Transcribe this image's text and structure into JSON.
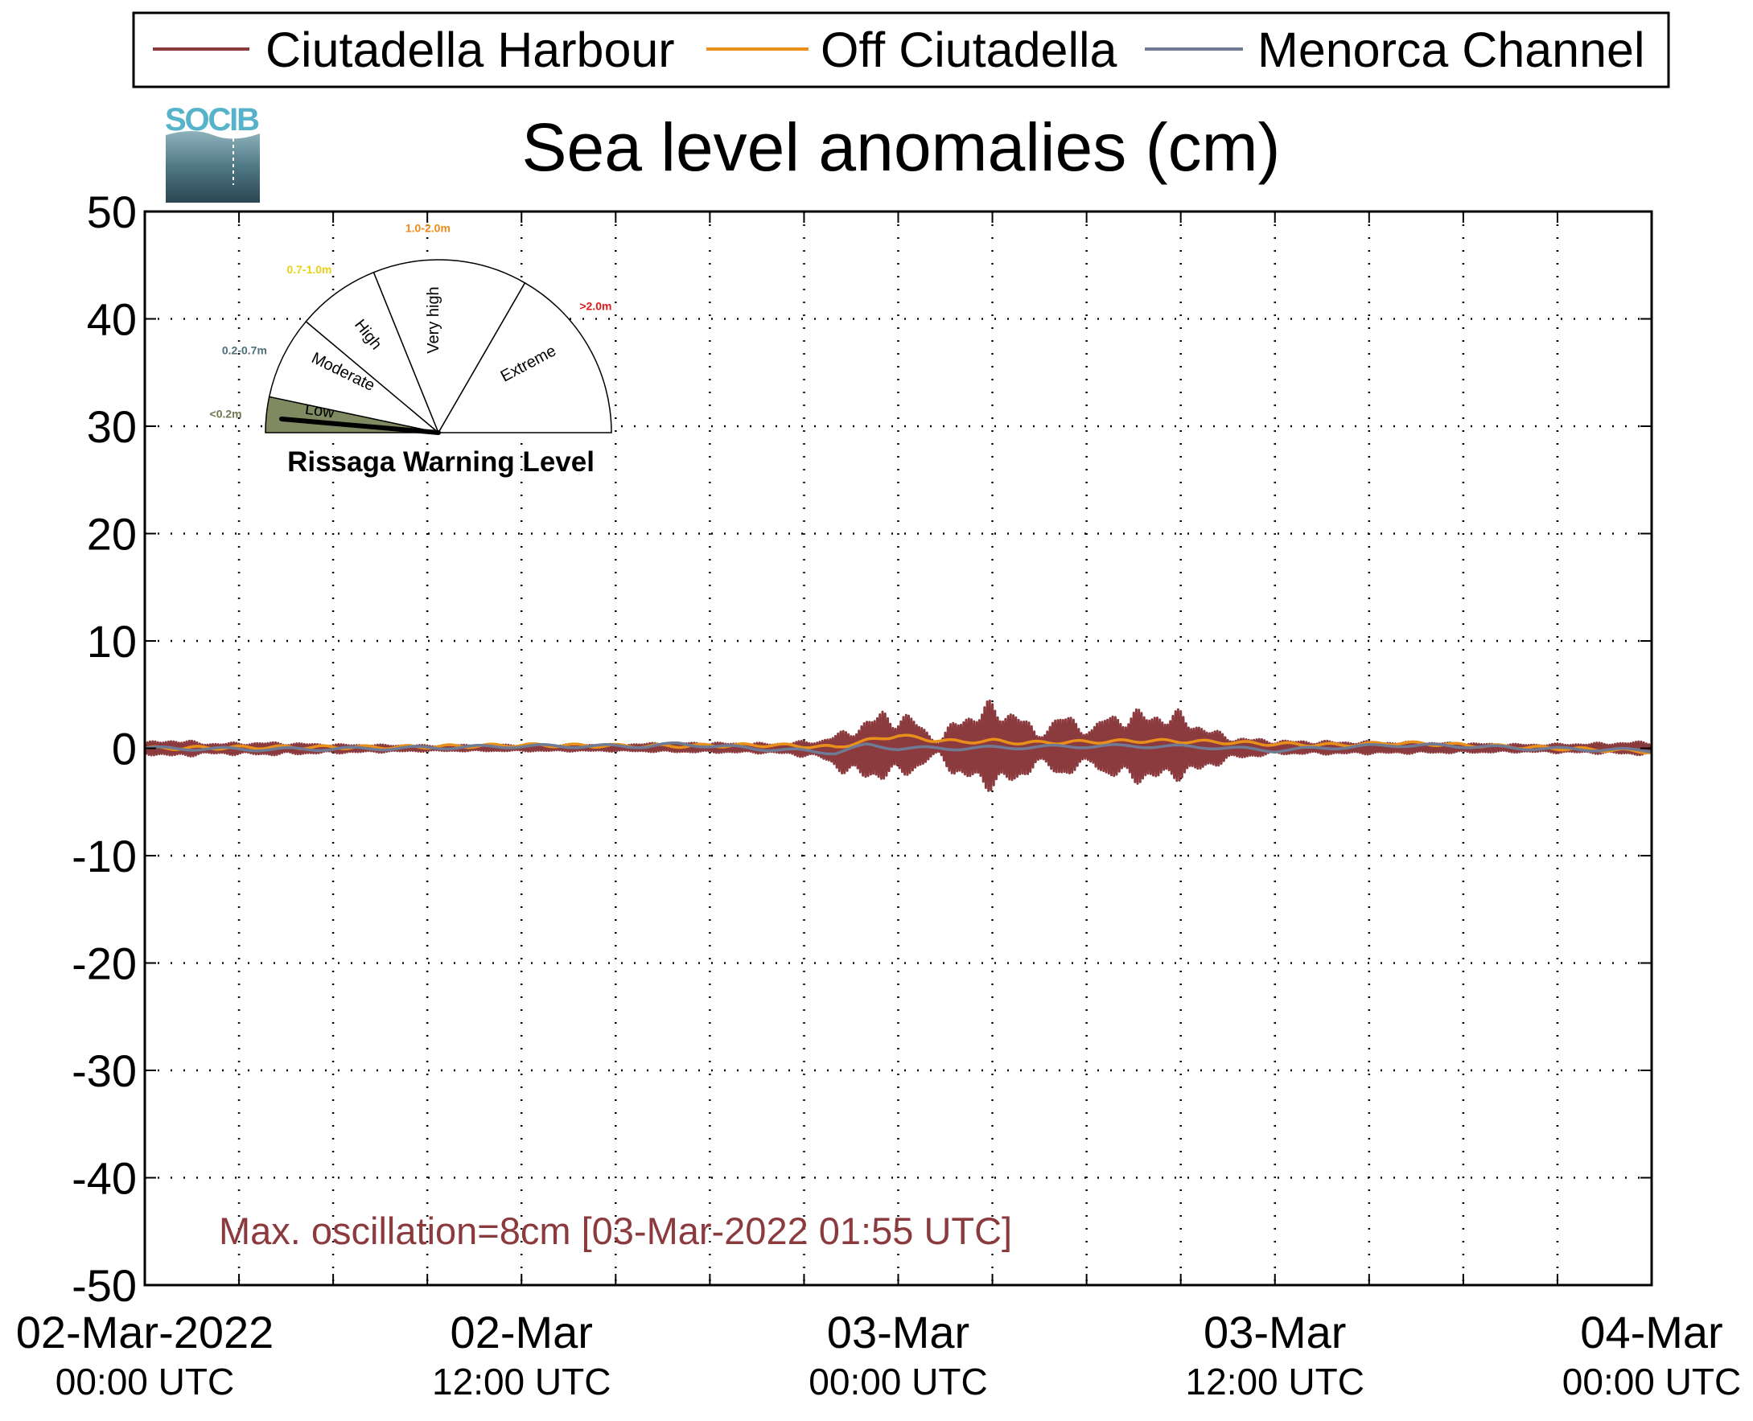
{
  "legend": {
    "items": [
      {
        "label": "Ciutadella Harbour",
        "color": "#8b3a3e"
      },
      {
        "label": "Off Ciutadella",
        "color": "#e8901a"
      },
      {
        "label": "Menorca Channel",
        "color": "#6f7b94"
      }
    ]
  },
  "logo": {
    "text": "SOCIB",
    "color": "#56b3c9"
  },
  "gauge": {
    "title": "Rissaga Warning Level",
    "segments": [
      {
        "label": "Low",
        "range": "<0.2m",
        "range_color": "#6f7a4f",
        "fill": "#808a60"
      },
      {
        "label": "Moderate",
        "range": "0.2-0.7m",
        "range_color": "#4f6f7a",
        "fill": "#ffffff"
      },
      {
        "label": "High",
        "range": "0.7-1.0m",
        "range_color": "#e6d21a",
        "fill": "#ffffff"
      },
      {
        "label": "Very high",
        "range": "1.0-2.0m",
        "range_color": "#f08a17",
        "fill": "#ffffff"
      },
      {
        "label": "Extreme",
        "range": ">2.0m",
        "range_color": "#e01a1a",
        "fill": "#ffffff"
      }
    ],
    "current_level": "Low"
  },
  "annotation": {
    "text": "Max. oscillation=8cm [03-Mar-2022 01:55 UTC]",
    "color": "#8b3a3e"
  },
  "chart_data": {
    "type": "line",
    "title": "Sea level anomalies (cm)",
    "xlabel": "",
    "ylabel": "",
    "ylim": [
      -50,
      50
    ],
    "yticks": [
      50,
      40,
      30,
      20,
      10,
      0,
      -10,
      -20,
      -30,
      -40,
      -50
    ],
    "xlim_hours": [
      0,
      48
    ],
    "xticks": [
      {
        "hour": 0,
        "line1": "02-Mar-2022",
        "line2": "00:00 UTC"
      },
      {
        "hour": 12,
        "line1": "02-Mar",
        "line2": "12:00 UTC"
      },
      {
        "hour": 24,
        "line1": "03-Mar",
        "line2": "00:00 UTC"
      },
      {
        "hour": 36,
        "line1": "03-Mar",
        "line2": "12:00 UTC"
      },
      {
        "hour": 48,
        "line1": "04-Mar",
        "line2": "00:00 UTC"
      }
    ],
    "grid": true,
    "series": [
      {
        "name": "Ciutadella Harbour",
        "color": "#8b3a3e",
        "envelope": [
          {
            "x": 0,
            "lo": -0.6,
            "hi": 0.6
          },
          {
            "x": 1,
            "lo": -0.9,
            "hi": 0.9
          },
          {
            "x": 2,
            "lo": -0.6,
            "hi": 0.5
          },
          {
            "x": 4,
            "lo": -0.7,
            "hi": 0.6
          },
          {
            "x": 6,
            "lo": -0.5,
            "hi": 0.4
          },
          {
            "x": 9,
            "lo": -0.3,
            "hi": 0.3
          },
          {
            "x": 12,
            "lo": -0.3,
            "hi": 0.4
          },
          {
            "x": 15,
            "lo": -0.3,
            "hi": 0.4
          },
          {
            "x": 17,
            "lo": -0.4,
            "hi": 0.6
          },
          {
            "x": 20,
            "lo": -0.5,
            "hi": 0.5
          },
          {
            "x": 21.5,
            "lo": -1.0,
            "hi": 0.8
          },
          {
            "x": 22.5,
            "lo": -3.0,
            "hi": 2.0
          },
          {
            "x": 23.5,
            "lo": -3.2,
            "hi": 3.8
          },
          {
            "x": 24.5,
            "lo": -2.5,
            "hi": 3.2
          },
          {
            "x": 25.3,
            "lo": -0.5,
            "hi": 0.6
          },
          {
            "x": 25.8,
            "lo": -3.0,
            "hi": 3.0
          },
          {
            "x": 26.8,
            "lo": -4.0,
            "hi": 4.5
          },
          {
            "x": 27.8,
            "lo": -3.8,
            "hi": 4.0
          },
          {
            "x": 28.4,
            "lo": -1.5,
            "hi": 1.5
          },
          {
            "x": 29.2,
            "lo": -3.0,
            "hi": 3.6
          },
          {
            "x": 30.2,
            "lo": -1.5,
            "hi": 2.0
          },
          {
            "x": 30.6,
            "lo": -3.0,
            "hi": 3.5
          },
          {
            "x": 32.0,
            "lo": -3.5,
            "hi": 3.8
          },
          {
            "x": 33.0,
            "lo": -3.0,
            "hi": 3.6
          },
          {
            "x": 33.6,
            "lo": -2.5,
            "hi": 2.5
          },
          {
            "x": 34.5,
            "lo": -1.2,
            "hi": 1.2
          },
          {
            "x": 36,
            "lo": -0.6,
            "hi": 0.8
          },
          {
            "x": 38,
            "lo": -0.6,
            "hi": 0.7
          },
          {
            "x": 41,
            "lo": -0.5,
            "hi": 0.6
          },
          {
            "x": 44,
            "lo": -0.4,
            "hi": 0.4
          },
          {
            "x": 46,
            "lo": -0.5,
            "hi": 0.5
          },
          {
            "x": 48,
            "lo": -0.7,
            "hi": 0.7
          }
        ]
      },
      {
        "name": "Off Ciutadella",
        "color": "#e8901a",
        "x": [
          0,
          4,
          8,
          12,
          16,
          20,
          22,
          23,
          24,
          25,
          26,
          27,
          28,
          30,
          32,
          34,
          36,
          38,
          40,
          42,
          44,
          46,
          48
        ],
        "y": [
          0,
          0.1,
          0.1,
          0.3,
          0.2,
          0.3,
          0.1,
          0.7,
          1.2,
          0.8,
          0.6,
          0.7,
          0.5,
          0.6,
          0.7,
          0.6,
          0.4,
          0.3,
          0.5,
          0.3,
          0.1,
          -0.1,
          -0.3
        ]
      },
      {
        "name": "Menorca Channel",
        "color": "#6f7b94",
        "x": [
          0,
          4,
          8,
          12,
          16,
          17,
          20,
          22,
          23,
          24,
          26,
          28,
          30,
          32,
          34,
          36,
          38,
          40,
          42,
          44,
          46,
          48
        ],
        "y": [
          0,
          -0.1,
          0,
          0.2,
          0.2,
          0.4,
          -0.1,
          -0.4,
          0.3,
          0.0,
          0.0,
          0.1,
          0.2,
          0.2,
          0.1,
          -0.2,
          0.1,
          0.3,
          0.2,
          0.0,
          -0.1,
          -0.2
        ]
      }
    ]
  }
}
